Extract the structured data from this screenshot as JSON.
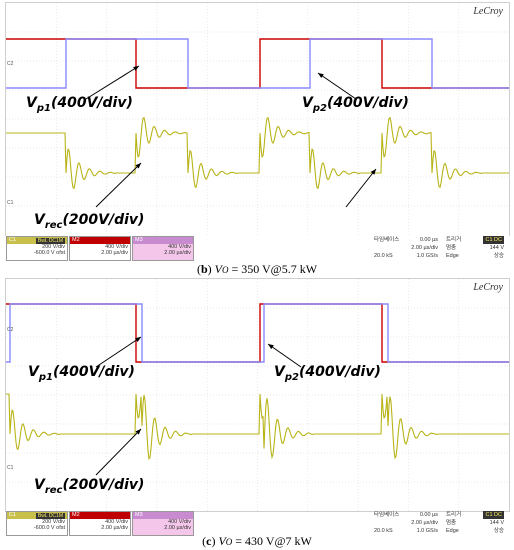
{
  "panels": [
    {
      "brand": "LeCroy",
      "ch1_marker": "C1",
      "ch2_marker": "C2",
      "labels": {
        "vp1": {
          "base": "V",
          "sub": "p1",
          "rest": "(400V/div)"
        },
        "vp2": {
          "base": "V",
          "sub": "p2",
          "rest": "(400V/div)"
        },
        "vrec": {
          "base": "V",
          "sub": "rec",
          "rest": "(200V/div)"
        }
      },
      "status": {
        "c1": {
          "name": "C1",
          "tag": "BwL DC1M",
          "r1": "200 V/div",
          "r2": "-600.0 V ofst",
          "color": "#c8c04a"
        },
        "m2": {
          "name": "M2",
          "tag": "",
          "r1": "400 V/div",
          "r2": "2.00 µs/div",
          "color": "#c00000"
        },
        "m3": {
          "name": "M3",
          "tag": "",
          "r1": "400 V/div",
          "r2": "2.00 µs/div",
          "color": "#c88bd0"
        },
        "timebase": {
          "k1": "타임베이스",
          "v1": "0.00 µs",
          "v2": "2.00 µs/div",
          "k3": "20.0 kS",
          "v3": "1.0 GS/s"
        },
        "trigger": {
          "k1": "트리거",
          "tag": "C1 DC",
          "k2": "멈춤",
          "v2": "144 V",
          "k3": "Edge",
          "v3": "상승"
        }
      },
      "caption": {
        "letter": "b",
        "formula_v": "V",
        "formula_sub": "O",
        "rest": " = 350 V@5.7 kW"
      }
    },
    {
      "brand": "LeCroy",
      "ch1_marker": "C1",
      "ch2_marker": "C2",
      "labels": {
        "vp1": {
          "base": "V",
          "sub": "p1",
          "rest": "(400V/div)"
        },
        "vp2": {
          "base": "V",
          "sub": "p2",
          "rest": "(400V/div)"
        },
        "vrec": {
          "base": "V",
          "sub": "rec",
          "rest": "(200V/div)"
        }
      },
      "status": {
        "c1": {
          "name": "C1",
          "tag": "BwL DC1M",
          "r1": "200 V/div",
          "r2": "-600.0 V ofst",
          "color": "#c8c04a"
        },
        "m2": {
          "name": "M2",
          "tag": "",
          "r1": "400 V/div",
          "r2": "2.00 µs/div",
          "color": "#c00000"
        },
        "m3": {
          "name": "M3",
          "tag": "",
          "r1": "400 V/div",
          "r2": "2.00 µs/div",
          "color": "#c88bd0"
        },
        "timebase": {
          "k1": "타임베이스",
          "v1": "0.00 µs",
          "v2": "2.00 µs/div",
          "k3": "20.0 kS",
          "v3": "1.0 GS/s"
        },
        "trigger": {
          "k1": "트리거",
          "tag": "C1 DC",
          "k2": "멈춤",
          "v2": "144 V",
          "k3": "Edge",
          "v3": "상승"
        }
      },
      "caption": {
        "letter": "c",
        "formula_v": "V",
        "formula_sub": "O",
        "rest": " = 430 V@7 kW"
      }
    }
  ],
  "colors": {
    "red_trace": "#cc0000",
    "blue_trace": "#8a8aff",
    "yellow_trace": "#b8b418",
    "grid": "#d4d4d4"
  }
}
